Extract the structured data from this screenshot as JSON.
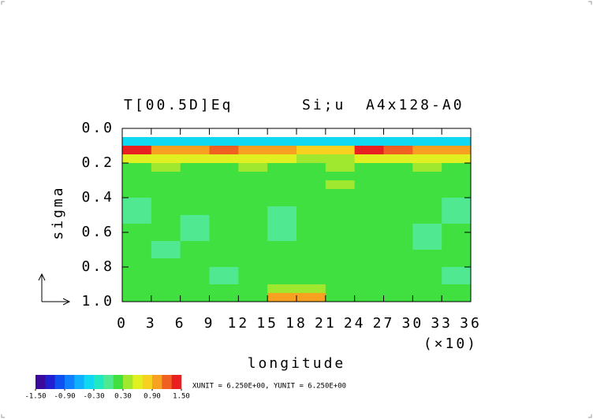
{
  "chart_data": {
    "type": "heatmap",
    "title": "T[00.5D]Eq",
    "subtitle": "Si;u",
    "title_right": "A4x128-A0",
    "x_label": "longitude",
    "x_unit_label": "(×10)",
    "y_label": "sigma",
    "footnote": "XUNIT = 6.250E+00, YUNIT = 6.250E+00",
    "xlim": [
      0,
      36
    ],
    "xticks": [
      0,
      3,
      6,
      9,
      12,
      15,
      18,
      21,
      24,
      27,
      30,
      33,
      36
    ],
    "ylim": [
      1.0,
      0.0
    ],
    "yticks": [
      {
        "value": 0.0,
        "label": "0.0"
      },
      {
        "value": 0.2,
        "label": "0.2"
      },
      {
        "value": 0.4,
        "label": "0.4"
      },
      {
        "value": 0.6,
        "label": "0.6"
      },
      {
        "value": 0.8,
        "label": "0.8"
      },
      {
        "value": 1.0,
        "label": "1.0"
      }
    ],
    "x": [
      1.5,
      4.5,
      7.5,
      10.5,
      13.5,
      16.5,
      19.5,
      22.5,
      25.5,
      28.5,
      31.5,
      34.5
    ],
    "y": [
      0.025,
      0.075,
      0.125,
      0.175,
      0.225,
      0.275,
      0.325,
      0.375,
      0.425,
      0.475,
      0.525,
      0.575,
      0.625,
      0.675,
      0.725,
      0.775,
      0.825,
      0.875,
      0.925,
      0.975
    ],
    "z": [
      [
        null,
        null,
        null,
        null,
        null,
        null,
        null,
        null,
        null,
        null,
        null,
        null
      ],
      [
        -0.5,
        -0.5,
        -0.5,
        -0.5,
        -0.5,
        -0.5,
        -0.5,
        -0.5,
        -0.5,
        -0.5,
        -0.5,
        -0.5
      ],
      [
        1.3,
        0.9,
        0.9,
        1.1,
        1.0,
        0.9,
        0.8,
        0.7,
        1.3,
        1.2,
        0.9,
        1.0
      ],
      [
        0.5,
        0.6,
        0.5,
        0.5,
        0.6,
        0.5,
        0.4,
        0.3,
        0.5,
        0.6,
        0.5,
        0.5
      ],
      [
        0.2,
        0.3,
        0.2,
        0.2,
        0.3,
        0.2,
        0.2,
        0.3,
        0.2,
        0.2,
        0.3,
        0.2
      ],
      [
        0.2,
        0.2,
        0.2,
        0.2,
        0.2,
        0.2,
        0.2,
        0.2,
        0.2,
        0.2,
        0.2,
        0.2
      ],
      [
        0.2,
        0.2,
        0.2,
        0.2,
        0.2,
        0.2,
        0.2,
        0.3,
        0.2,
        0.2,
        0.2,
        0.2
      ],
      [
        0.2,
        0.2,
        0.2,
        0.2,
        0.2,
        0.2,
        0.2,
        0.2,
        0.2,
        0.2,
        0.2,
        0.2
      ],
      [
        0.0,
        0.2,
        0.2,
        0.2,
        0.2,
        0.2,
        0.2,
        0.2,
        0.2,
        0.2,
        0.2,
        0.0
      ],
      [
        0.0,
        0.2,
        0.2,
        0.2,
        0.2,
        0.0,
        0.2,
        0.2,
        0.2,
        0.2,
        0.2,
        0.0
      ],
      [
        0.0,
        0.2,
        0.0,
        0.2,
        0.2,
        0.0,
        0.2,
        0.2,
        0.2,
        0.2,
        0.2,
        0.0
      ],
      [
        0.2,
        0.2,
        0.0,
        0.2,
        0.2,
        0.0,
        0.2,
        0.2,
        0.2,
        0.2,
        0.0,
        0.2
      ],
      [
        0.2,
        0.2,
        0.0,
        0.2,
        0.2,
        0.0,
        0.2,
        0.2,
        0.2,
        0.2,
        0.0,
        0.2
      ],
      [
        0.2,
        0.0,
        0.2,
        0.2,
        0.2,
        0.2,
        0.2,
        0.2,
        0.2,
        0.2,
        0.0,
        0.2
      ],
      [
        0.2,
        0.0,
        0.2,
        0.2,
        0.2,
        0.2,
        0.2,
        0.2,
        0.2,
        0.2,
        0.2,
        0.2
      ],
      [
        0.2,
        0.2,
        0.2,
        0.2,
        0.2,
        0.2,
        0.2,
        0.2,
        0.2,
        0.2,
        0.2,
        0.2
      ],
      [
        0.2,
        0.2,
        0.2,
        0.0,
        0.2,
        0.2,
        0.2,
        0.2,
        0.2,
        0.2,
        0.2,
        0.0
      ],
      [
        0.2,
        0.2,
        0.2,
        0.0,
        0.2,
        0.2,
        0.2,
        0.2,
        0.2,
        0.2,
        0.2,
        0.0
      ],
      [
        0.2,
        0.2,
        0.2,
        0.2,
        0.2,
        0.3,
        0.3,
        0.2,
        0.2,
        0.2,
        0.2,
        0.2
      ],
      [
        0.2,
        0.2,
        0.2,
        0.2,
        0.2,
        0.9,
        0.9,
        0.2,
        0.2,
        0.2,
        0.2,
        0.2
      ]
    ],
    "levels": [
      -1.5,
      -1.3,
      -1.1,
      -0.9,
      -0.7,
      -0.5,
      -0.3,
      -0.1,
      0.1,
      0.3,
      0.5,
      0.7,
      0.9,
      1.1,
      1.3,
      1.5
    ],
    "colors": [
      "#3a0a9c",
      "#2020d0",
      "#1050f0",
      "#1080ff",
      "#10b0ff",
      "#10d8f0",
      "#20e8c0",
      "#50e890",
      "#40e040",
      "#a0e830",
      "#e0f020",
      "#f8d020",
      "#f8a020",
      "#f06020",
      "#e82020"
    ],
    "colorbar_ticks": [
      {
        "value": -1.5,
        "label": "-1.50"
      },
      {
        "value": -0.9,
        "label": "-0.90"
      },
      {
        "value": -0.3,
        "label": "-0.30"
      },
      {
        "value": 0.3,
        "label": "0.30"
      },
      {
        "value": 0.9,
        "label": "0.90"
      },
      {
        "value": 1.5,
        "label": "1.50"
      }
    ]
  }
}
